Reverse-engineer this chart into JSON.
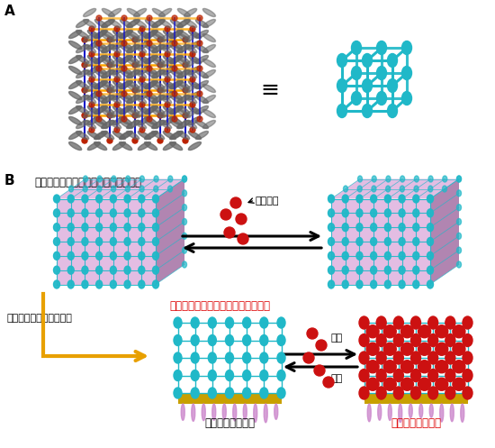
{
  "label_A": "A",
  "label_B": "B",
  "equiv_symbol": "≡",
  "bulk_state_label": "バルク状態（ガス分子に応答しない）",
  "thin_film_label": "薄膜状態（ガス分子に応答する！）",
  "gas_molecule_label": "ガス分子",
  "nano_size_label": "「ナノサイズ」へ小型化",
  "gate_closed_label": "ゲート「閉」状態",
  "gate_open_red_label": "ゲート「開」状態",
  "adsorption_label": "吸着",
  "desorption_label": "脱着",
  "crystal_color_orange": "#FFA500",
  "crystal_color_red": "#BB2200",
  "crystal_color_blue": "#1111CC",
  "crystal_color_gray": "#666666",
  "mof_color_cyan": "#20B8C8",
  "cube_face_pink": "#CC88CC",
  "cube_face_dark": "#884488",
  "gold_color": "#C8A000",
  "pink_linker": "#CC88CC",
  "red_sphere_color": "#CC1111",
  "orange_arrow_color": "#E8A000",
  "thin_film_label_color": "#DD0000",
  "gate_open_label_color": "#DD0000",
  "background_color": "#FFFFFF"
}
